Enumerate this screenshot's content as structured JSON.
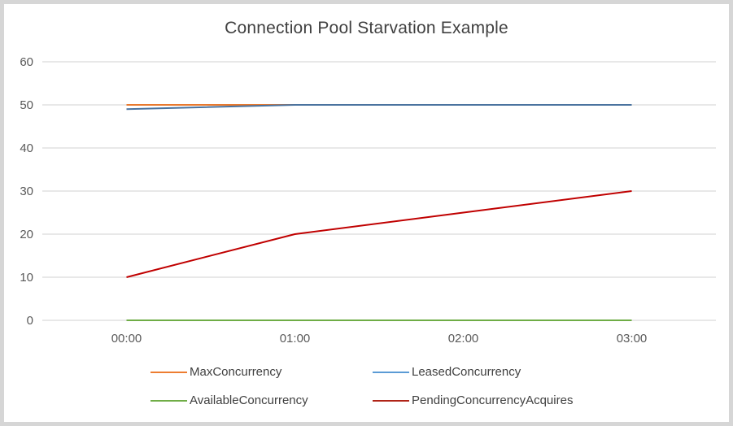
{
  "frame": {
    "border_color": "#d6d6d6",
    "background": "#ffffff"
  },
  "chart_data": {
    "type": "line",
    "title": "Connection Pool Starvation Example",
    "title_color": "#404040",
    "categories": [
      "00:00",
      "01:00",
      "02:00",
      "03:00"
    ],
    "series": [
      {
        "name": "MaxConcurrency",
        "color": "#ED7D31",
        "plot_color": "#E8792E",
        "values": [
          50,
          50,
          50,
          50
        ]
      },
      {
        "name": "LeasedConcurrency",
        "color": "#5B9BD5",
        "plot_color": "#4A739F",
        "values": [
          49,
          50,
          50,
          50
        ]
      },
      {
        "name": "AvailableConcurrency",
        "color": "#70AD47",
        "plot_color": "#6FAD46",
        "values": [
          0,
          0,
          0,
          0
        ]
      },
      {
        "name": "PendingConcurrencyAcquires",
        "color": "#B02418",
        "plot_color": "#C00000",
        "values": [
          10,
          20,
          25,
          30
        ]
      }
    ],
    "xlabel": "",
    "ylabel": "",
    "y_ticks": [
      0,
      10,
      20,
      30,
      40,
      50,
      60
    ],
    "ylim": [
      0,
      60
    ],
    "grid": true,
    "grid_color": "#D9D9D9",
    "tick_label_color": "#595959",
    "legend_position": "bottom",
    "legend_text_color": "#404040"
  }
}
